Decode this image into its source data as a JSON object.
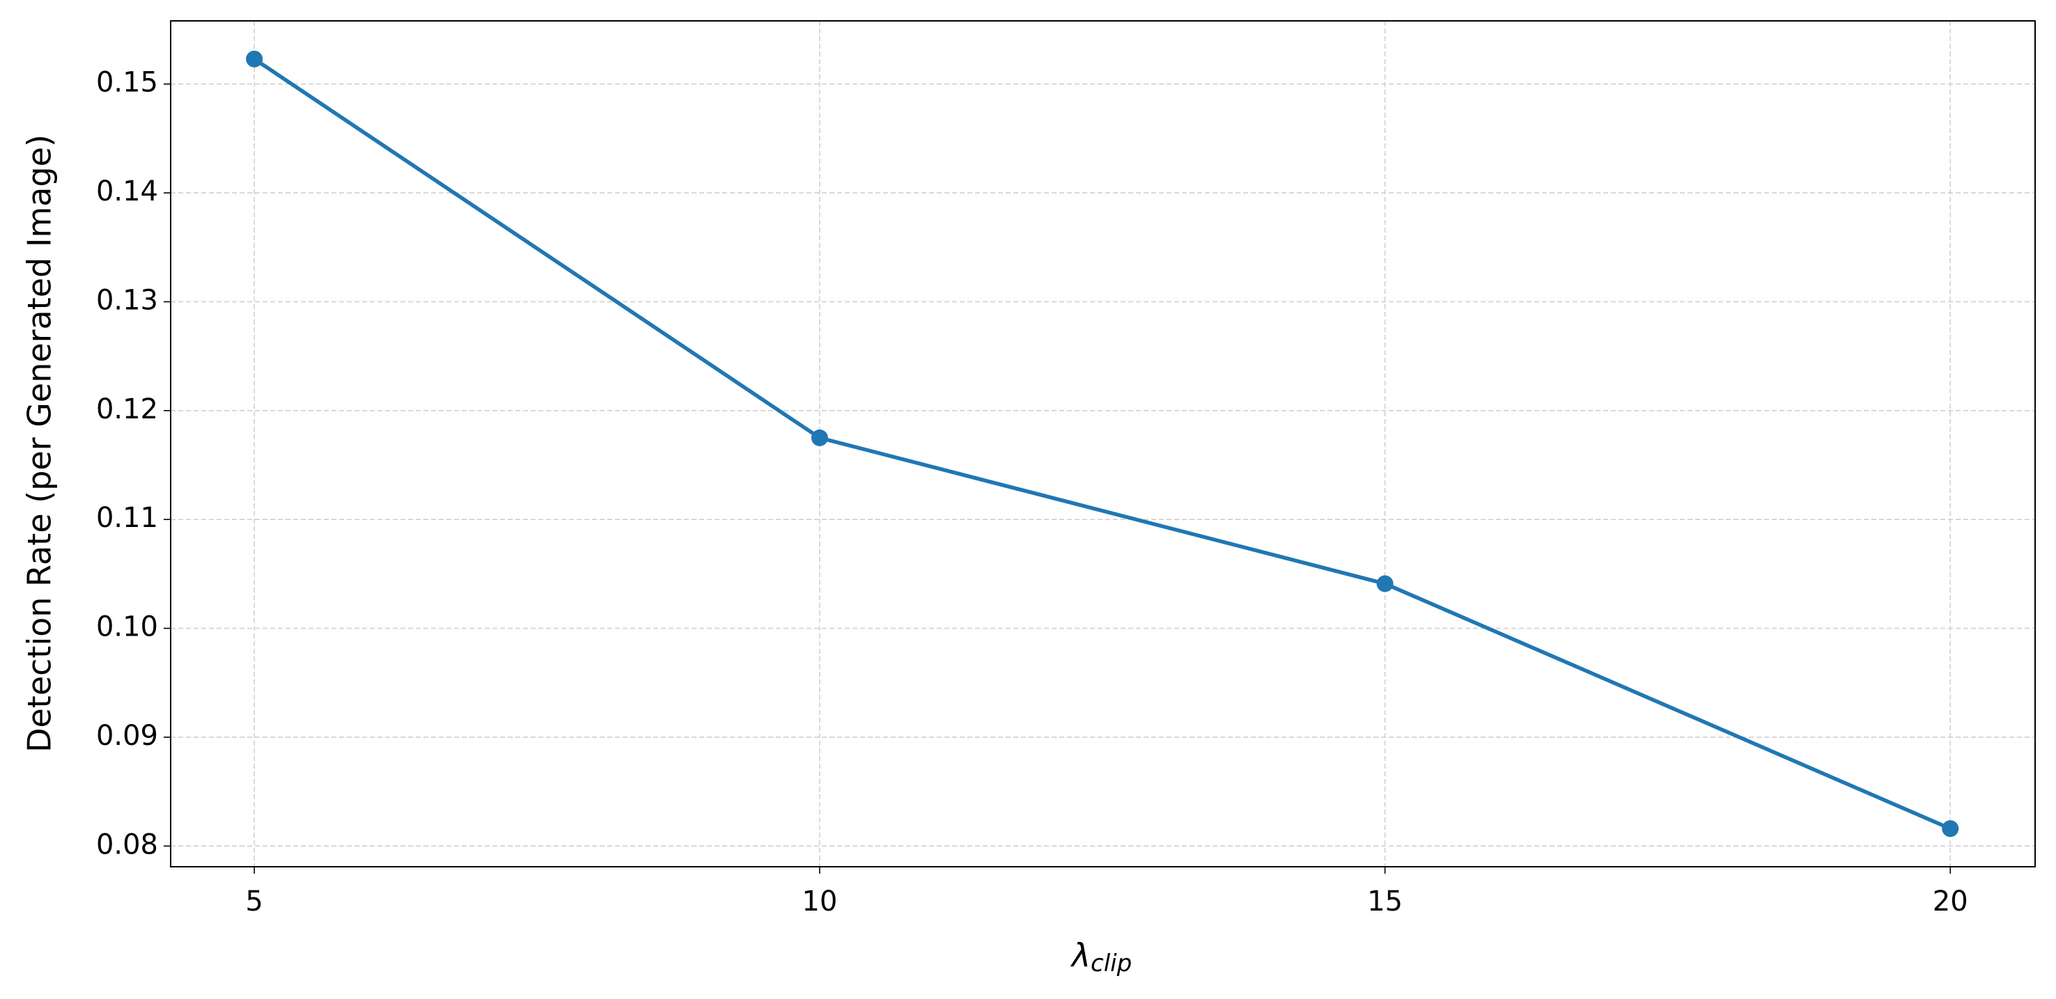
{
  "chart_data": {
    "type": "line",
    "x_label": {
      "symbol": "λ",
      "subscript": "clip"
    },
    "y_label": "Detection Rate (per Generated Image)",
    "x": [
      5,
      10,
      15,
      20
    ],
    "series": [
      {
        "color": "#1f77b4",
        "values": [
          0.1523,
          0.1175,
          0.1041,
          0.0816
        ]
      }
    ],
    "xlim": [
      4.26,
      20.75
    ],
    "xticks": [
      5,
      10,
      15,
      20
    ],
    "ylim": [
      0.0781,
      0.1558
    ],
    "yticks": [
      0.08,
      0.09,
      {
        "value": 0.1,
        "label": "0.10"
      },
      0.11,
      0.12,
      0.13,
      0.14,
      0.15
    ],
    "grid": true,
    "markers": true
  }
}
